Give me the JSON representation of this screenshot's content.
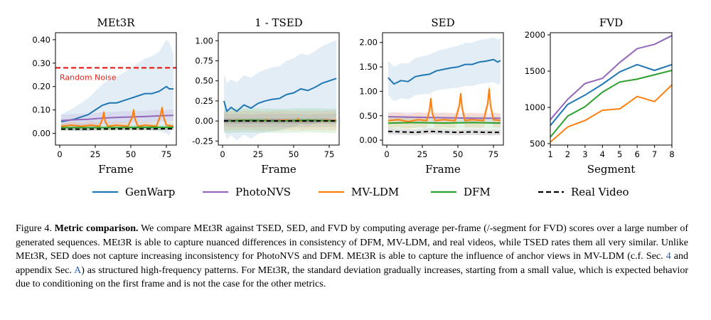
{
  "colors": {
    "GenWarp": "#1f77b4",
    "PhotoNVS": "#9467bd",
    "MV-LDM": "#ff7f0e",
    "DFM": "#2ca02c",
    "Real Video": "#000000",
    "random_noise": "#e8221b"
  },
  "legend": [
    {
      "name": "GenWarp",
      "style": "solid"
    },
    {
      "name": "PhotoNVS",
      "style": "solid"
    },
    {
      "name": "MV-LDM",
      "style": "solid"
    },
    {
      "name": "DFM",
      "style": "solid"
    },
    {
      "name": "Real Video",
      "style": "dashed"
    }
  ],
  "chart_data": [
    {
      "type": "line",
      "title": "MEt3R",
      "xlabel": "Frame",
      "ylabel": "",
      "xlim": [
        -3,
        82
      ],
      "ylim": [
        -0.05,
        0.43
      ],
      "xticks": [
        0,
        25,
        50,
        75
      ],
      "yticks": [
        0.0,
        0.1,
        0.2,
        0.3,
        0.4
      ],
      "ytick_labels": [
        "0.00",
        "0.10",
        "0.20",
        "0.30",
        "0.40"
      ],
      "reference_line": {
        "label": "Random Noise",
        "y": 0.28
      },
      "series": [
        {
          "name": "GenWarp",
          "x": [
            1,
            10,
            20,
            25,
            30,
            35,
            40,
            45,
            50,
            55,
            60,
            65,
            70,
            75,
            77,
            80
          ],
          "y": [
            0.05,
            0.06,
            0.08,
            0.1,
            0.12,
            0.13,
            0.13,
            0.14,
            0.15,
            0.16,
            0.17,
            0.17,
            0.18,
            0.2,
            0.19,
            0.19
          ],
          "band": [
            0.03,
            0.05,
            0.07,
            0.08,
            0.09,
            0.1,
            0.11,
            0.12,
            0.13,
            0.14,
            0.15,
            0.16,
            0.17,
            0.2,
            0.2,
            0.15
          ]
        },
        {
          "name": "PhotoNVS",
          "x": [
            1,
            10,
            20,
            30,
            40,
            50,
            60,
            70,
            80
          ],
          "y": [
            0.055,
            0.058,
            0.06,
            0.065,
            0.068,
            0.07,
            0.072,
            0.075,
            0.077
          ],
          "band": [
            0.025,
            0.025,
            0.025,
            0.025,
            0.025,
            0.025,
            0.025,
            0.025,
            0.025
          ]
        },
        {
          "name": "MV-LDM",
          "x": [
            1,
            8,
            15,
            22,
            28,
            30,
            31,
            32,
            34,
            40,
            48,
            51,
            52,
            53,
            55,
            60,
            68,
            71,
            72,
            73,
            75,
            80
          ],
          "y": [
            0.03,
            0.035,
            0.03,
            0.035,
            0.03,
            0.06,
            0.09,
            0.05,
            0.03,
            0.035,
            0.03,
            0.07,
            0.1,
            0.06,
            0.03,
            0.035,
            0.03,
            0.08,
            0.11,
            0.07,
            0.035,
            0.03
          ],
          "band": [
            0.015,
            0.015,
            0.015,
            0.015,
            0.015,
            0.015,
            0.015,
            0.015,
            0.015,
            0.015,
            0.015,
            0.015,
            0.015,
            0.015,
            0.015,
            0.015,
            0.015,
            0.015,
            0.015,
            0.015,
            0.015,
            0.015
          ]
        },
        {
          "name": "DFM",
          "x": [
            1,
            20,
            40,
            60,
            80
          ],
          "y": [
            0.025,
            0.025,
            0.025,
            0.026,
            0.026
          ],
          "band": [
            0.012,
            0.012,
            0.012,
            0.012,
            0.012
          ]
        },
        {
          "name": "Real Video",
          "x": [
            1,
            20,
            40,
            60,
            80
          ],
          "y": [
            0.018,
            0.018,
            0.019,
            0.019,
            0.02
          ],
          "band": [
            0.006,
            0.006,
            0.006,
            0.006,
            0.006
          ]
        }
      ]
    },
    {
      "type": "line",
      "title": "1 - TSED",
      "xlabel": "Frame",
      "ylabel": "",
      "xlim": [
        -3,
        82
      ],
      "ylim": [
        -0.3,
        1.1
      ],
      "xticks": [
        0,
        25,
        50,
        75
      ],
      "yticks": [
        -0.25,
        0.0,
        0.25,
        0.5,
        0.75,
        1.0
      ],
      "ytick_labels": [
        "-0.25",
        "0.00",
        "0.25",
        "0.50",
        "0.75",
        "1.00"
      ],
      "series": [
        {
          "name": "GenWarp",
          "x": [
            1,
            3,
            6,
            10,
            15,
            20,
            25,
            30,
            35,
            40,
            45,
            50,
            55,
            60,
            65,
            70,
            75,
            80
          ],
          "y": [
            0.25,
            0.12,
            0.17,
            0.12,
            0.2,
            0.16,
            0.22,
            0.25,
            0.27,
            0.28,
            0.33,
            0.35,
            0.4,
            0.38,
            0.42,
            0.47,
            0.5,
            0.53
          ],
          "band": [
            0.35,
            0.35,
            0.35,
            0.36,
            0.37,
            0.38,
            0.38,
            0.39,
            0.4,
            0.4,
            0.42,
            0.43,
            0.44,
            0.44,
            0.45,
            0.46,
            0.47,
            0.48
          ]
        },
        {
          "name": "PhotoNVS",
          "x": [
            1,
            20,
            40,
            60,
            80
          ],
          "y": [
            0.01,
            0.0,
            0.01,
            0.0,
            0.01
          ],
          "band": [
            0.08,
            0.08,
            0.08,
            0.08,
            0.08
          ]
        },
        {
          "name": "MV-LDM",
          "x": [
            1,
            15,
            30,
            31,
            32,
            45,
            52,
            53,
            54,
            65,
            72,
            73,
            74,
            80
          ],
          "y": [
            0.0,
            0.01,
            0.0,
            0.02,
            0.0,
            0.01,
            0.0,
            0.03,
            0.0,
            0.01,
            0.0,
            0.02,
            0.0,
            0.01
          ],
          "band": [
            0.12,
            0.12,
            0.12,
            0.12,
            0.12,
            0.12,
            0.12,
            0.12,
            0.12,
            0.12,
            0.12,
            0.12,
            0.12,
            0.12
          ]
        },
        {
          "name": "DFM",
          "x": [
            1,
            20,
            40,
            60,
            80
          ],
          "y": [
            0.0,
            0.01,
            0.0,
            0.01,
            0.0
          ],
          "band": [
            0.15,
            0.15,
            0.15,
            0.15,
            0.15
          ]
        },
        {
          "name": "Real Video",
          "x": [
            1,
            20,
            40,
            60,
            80
          ],
          "y": [
            0.0,
            0.0,
            0.0,
            0.0,
            0.0
          ],
          "band": [
            0.03,
            0.03,
            0.03,
            0.03,
            0.03
          ]
        }
      ]
    },
    {
      "type": "line",
      "title": "SED",
      "xlabel": "Frame",
      "ylabel": "",
      "xlim": [
        -3,
        82
      ],
      "ylim": [
        -0.1,
        2.2
      ],
      "xticks": [
        0,
        25,
        50,
        75
      ],
      "yticks": [
        0.0,
        0.5,
        1.0,
        1.5,
        2.0
      ],
      "ytick_labels": [
        "0.00",
        "0.50",
        "1.00",
        "1.50",
        "2.00"
      ],
      "series": [
        {
          "name": "GenWarp",
          "x": [
            1,
            5,
            10,
            15,
            20,
            25,
            30,
            35,
            40,
            45,
            50,
            55,
            60,
            65,
            70,
            75,
            78,
            80
          ],
          "y": [
            1.28,
            1.15,
            1.22,
            1.2,
            1.3,
            1.33,
            1.35,
            1.42,
            1.45,
            1.48,
            1.5,
            1.55,
            1.55,
            1.6,
            1.62,
            1.65,
            1.6,
            1.63
          ],
          "band": [
            0.35,
            0.35,
            0.36,
            0.37,
            0.38,
            0.39,
            0.4,
            0.4,
            0.41,
            0.42,
            0.43,
            0.44,
            0.44,
            0.45,
            0.45,
            0.46,
            0.46,
            0.46
          ]
        },
        {
          "name": "PhotoNVS",
          "x": [
            1,
            20,
            40,
            60,
            80
          ],
          "y": [
            0.48,
            0.47,
            0.46,
            0.45,
            0.45
          ],
          "band": [
            0.1,
            0.1,
            0.1,
            0.1,
            0.1
          ]
        },
        {
          "name": "MV-LDM",
          "x": [
            1,
            8,
            15,
            22,
            28,
            30,
            31,
            32,
            34,
            40,
            48,
            51,
            52,
            53,
            55,
            60,
            68,
            71,
            72,
            73,
            75,
            80
          ],
          "y": [
            0.4,
            0.42,
            0.38,
            0.42,
            0.4,
            0.6,
            0.85,
            0.55,
            0.4,
            0.42,
            0.4,
            0.7,
            0.95,
            0.65,
            0.4,
            0.42,
            0.4,
            0.75,
            1.05,
            0.7,
            0.42,
            0.4
          ],
          "band": [
            0.15,
            0.15,
            0.15,
            0.15,
            0.15,
            0.15,
            0.15,
            0.15,
            0.15,
            0.15,
            0.15,
            0.15,
            0.15,
            0.15,
            0.15,
            0.15,
            0.15,
            0.15,
            0.15,
            0.15,
            0.15,
            0.15
          ]
        },
        {
          "name": "DFM",
          "x": [
            1,
            20,
            40,
            60,
            80
          ],
          "y": [
            0.35,
            0.36,
            0.35,
            0.36,
            0.35
          ],
          "band": [
            0.12,
            0.12,
            0.12,
            0.12,
            0.12
          ]
        },
        {
          "name": "Real Video",
          "x": [
            1,
            10,
            20,
            30,
            40,
            50,
            60,
            70,
            80
          ],
          "y": [
            0.18,
            0.17,
            0.16,
            0.18,
            0.17,
            0.16,
            0.17,
            0.16,
            0.16
          ],
          "band": [
            0.06,
            0.06,
            0.06,
            0.06,
            0.06,
            0.06,
            0.06,
            0.06,
            0.06
          ]
        }
      ]
    },
    {
      "type": "line",
      "title": "FVD",
      "xlabel": "Segment",
      "ylabel": "",
      "xlim": [
        1,
        8
      ],
      "ylim": [
        480,
        2030
      ],
      "xticks": [
        1,
        2,
        3,
        4,
        5,
        6,
        7,
        8
      ],
      "yticks": [
        500,
        1000,
        1500,
        2000
      ],
      "ytick_labels": [
        "500",
        "1000",
        "1500",
        "2000"
      ],
      "series": [
        {
          "name": "GenWarp",
          "x": [
            1,
            2,
            3,
            4,
            5,
            6,
            7,
            8
          ],
          "y": [
            750,
            1040,
            1170,
            1320,
            1490,
            1590,
            1510,
            1590
          ]
        },
        {
          "name": "PhotoNVS",
          "x": [
            1,
            2,
            3,
            4,
            5,
            6,
            7,
            8
          ],
          "y": [
            830,
            1110,
            1330,
            1400,
            1620,
            1810,
            1870,
            1990
          ]
        },
        {
          "name": "MV-LDM",
          "x": [
            1,
            2,
            3,
            4,
            5,
            6,
            7,
            8
          ],
          "y": [
            520,
            730,
            820,
            960,
            980,
            1150,
            1080,
            1310
          ]
        },
        {
          "name": "DFM",
          "x": [
            1,
            2,
            3,
            4,
            5,
            6,
            7,
            8
          ],
          "y": [
            590,
            880,
            1010,
            1210,
            1350,
            1390,
            1450,
            1510
          ]
        }
      ]
    }
  ],
  "caption": {
    "label": "Figure 4.",
    "bold": "Metric comparison.",
    "p1": "We compare MEt3R against TSED, SED, and FVD by computing average per-frame (/-segment for FVD) scores over a large number of generated sequences.  MEt3R is able to capture nuanced differences in consistency of DFM, MV-LDM, and real videos, while TSED rates them all very similar.  Unlike MEt3R, SED does not capture increasing inconsistency for PhotoNVS and DFM. MEt3R is able to capture the influence of anchor views in MV-LDM (c.f.  Sec.",
    "ref1": "4",
    "p2": "and appendix Sec.",
    "ref2": "A",
    "p3": ") as structured high-frequency patterns. For MEt3R, the standard deviation gradually increases, starting from a small value, which is expected behavior due to conditioning on the first frame and is not the case for the other metrics."
  }
}
